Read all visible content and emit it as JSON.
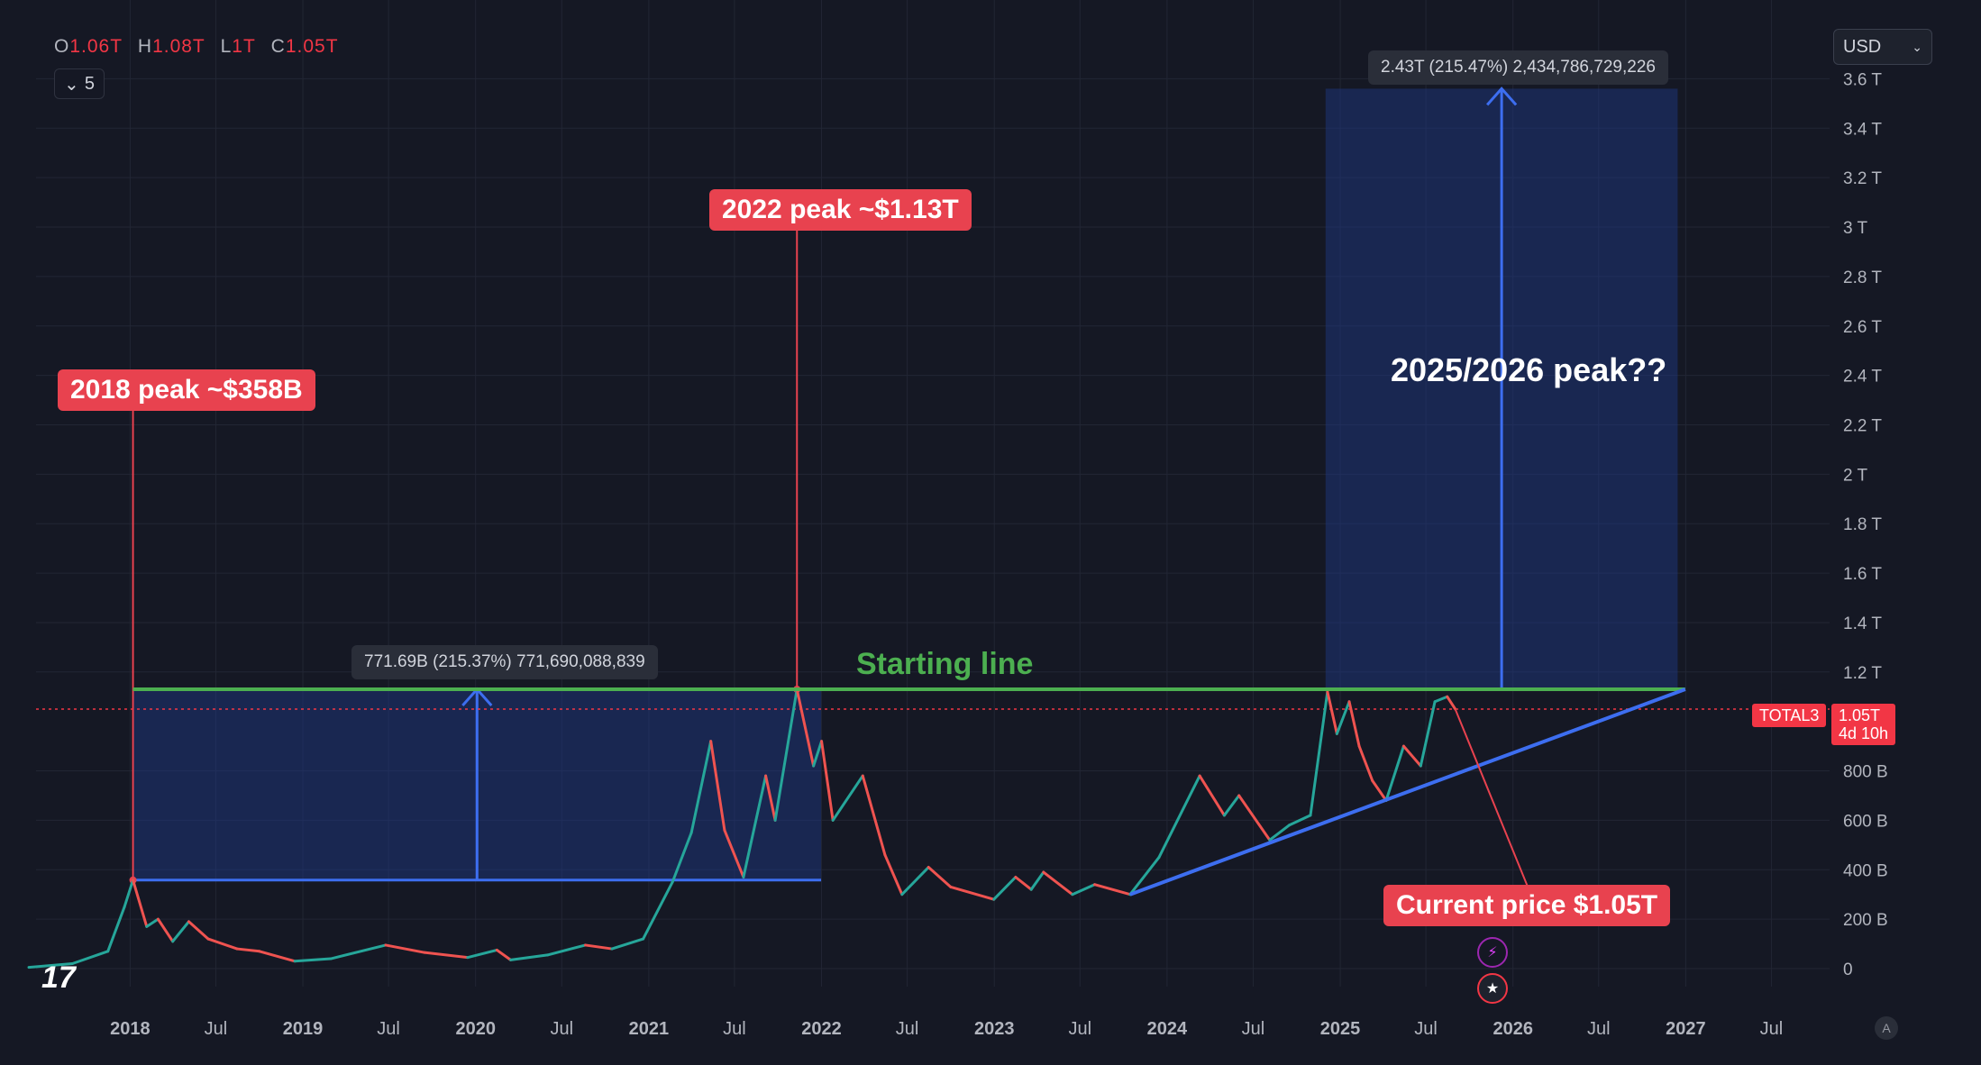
{
  "ohlc": {
    "o_key": "O",
    "o_val": "1.06T",
    "h_key": "H",
    "h_val": "1.08T",
    "l_key": "L",
    "l_val": "1T",
    "c_key": "C",
    "c_val": "1.05T"
  },
  "collapse_count": "5",
  "currency": "USD",
  "annotations": {
    "peak_2018": "2018 peak ~$358B",
    "peak_2022": "2022 peak ~$1.13T",
    "peak_2025": "2025/2026 peak??",
    "starting_line": "Starting line",
    "current_price": "Current price $1.05T",
    "measure_upper": "2.43T (215.47%) 2,434,786,729,226",
    "measure_lower": "771.69B (215.37%) 771,690,088,839"
  },
  "price_tag": {
    "symbol": "TOTAL3",
    "price": "1.05T",
    "countdown": "4d 10h"
  },
  "chart_data": {
    "type": "line",
    "title": "",
    "y_unit": "USD",
    "ylim": [
      0,
      3700000000000
    ],
    "y_ticks": [
      0,
      200000000000,
      400000000000,
      600000000000,
      800000000000,
      1200000000000,
      1400000000000,
      1600000000000,
      1800000000000,
      2000000000000,
      2200000000000,
      2400000000000,
      2600000000000,
      2800000000000,
      3000000000000,
      3200000000000,
      3400000000000,
      3600000000000
    ],
    "y_tick_labels": [
      "0",
      "200 B",
      "400 B",
      "600 B",
      "800 B",
      "1.2 T",
      "1.4 T",
      "1.6 T",
      "1.8 T",
      "2 T",
      "2.2 T",
      "2.4 T",
      "2.6 T",
      "2.8 T",
      "3 T",
      "3.2 T",
      "3.4 T",
      "3.6 T"
    ],
    "x_range": [
      "2017-04-01",
      "2027-11-01"
    ],
    "x_ticks": [
      {
        "date": "2018-01-01",
        "label": "2018",
        "major": true
      },
      {
        "date": "2018-07-01",
        "label": "Jul",
        "major": false
      },
      {
        "date": "2019-01-01",
        "label": "2019",
        "major": true
      },
      {
        "date": "2019-07-01",
        "label": "Jul",
        "major": false
      },
      {
        "date": "2020-01-01",
        "label": "2020",
        "major": true
      },
      {
        "date": "2020-07-01",
        "label": "Jul",
        "major": false
      },
      {
        "date": "2021-01-01",
        "label": "2021",
        "major": true
      },
      {
        "date": "2021-07-01",
        "label": "Jul",
        "major": false
      },
      {
        "date": "2022-01-01",
        "label": "2022",
        "major": true
      },
      {
        "date": "2022-07-01",
        "label": "Jul",
        "major": false
      },
      {
        "date": "2023-01-01",
        "label": "2023",
        "major": true
      },
      {
        "date": "2023-07-01",
        "label": "Jul",
        "major": false
      },
      {
        "date": "2024-01-01",
        "label": "2024",
        "major": true
      },
      {
        "date": "2024-07-01",
        "label": "Jul",
        "major": false
      },
      {
        "date": "2025-01-01",
        "label": "2025",
        "major": true
      },
      {
        "date": "2025-07-01",
        "label": "Jul",
        "major": false
      },
      {
        "date": "2026-01-01",
        "label": "2026",
        "major": true
      },
      {
        "date": "2026-07-01",
        "label": "Jul",
        "major": false
      },
      {
        "date": "2027-01-01",
        "label": "2027",
        "major": true
      },
      {
        "date": "2027-07-01",
        "label": "Jul",
        "major": false
      }
    ],
    "series": [
      {
        "values": [
          [
            "2017-06-01",
            5000000000
          ],
          [
            "2017-09-01",
            20000000000
          ],
          [
            "2017-11-15",
            70000000000
          ],
          [
            "2017-12-20",
            250000000000
          ],
          [
            "2018-01-07",
            358000000000
          ],
          [
            "2018-02-05",
            170000000000
          ],
          [
            "2018-03-01",
            200000000000
          ],
          [
            "2018-04-01",
            110000000000
          ],
          [
            "2018-05-05",
            190000000000
          ],
          [
            "2018-06-15",
            120000000000
          ],
          [
            "2018-08-15",
            80000000000
          ],
          [
            "2018-10-01",
            70000000000
          ],
          [
            "2018-12-15",
            30000000000
          ],
          [
            "2019-03-01",
            40000000000
          ],
          [
            "2019-06-25",
            95000000000
          ],
          [
            "2019-09-15",
            65000000000
          ],
          [
            "2019-12-15",
            45000000000
          ],
          [
            "2020-02-15",
            75000000000
          ],
          [
            "2020-03-15",
            35000000000
          ],
          [
            "2020-06-01",
            55000000000
          ],
          [
            "2020-08-20",
            95000000000
          ],
          [
            "2020-10-15",
            80000000000
          ],
          [
            "2020-12-20",
            120000000000
          ],
          [
            "2021-02-20",
            350000000000
          ],
          [
            "2021-04-01",
            550000000000
          ],
          [
            "2021-05-12",
            920000000000
          ],
          [
            "2021-06-10",
            560000000000
          ],
          [
            "2021-07-20",
            370000000000
          ],
          [
            "2021-09-05",
            780000000000
          ],
          [
            "2021-09-25",
            600000000000
          ],
          [
            "2021-11-10",
            1130000000000
          ],
          [
            "2021-12-15",
            820000000000
          ],
          [
            "2022-01-01",
            920000000000
          ],
          [
            "2022-01-25",
            600000000000
          ],
          [
            "2022-03-29",
            780000000000
          ],
          [
            "2022-05-15",
            460000000000
          ],
          [
            "2022-06-20",
            300000000000
          ],
          [
            "2022-08-15",
            410000000000
          ],
          [
            "2022-10-01",
            330000000000
          ],
          [
            "2022-12-31",
            280000000000
          ],
          [
            "2023-02-15",
            370000000000
          ],
          [
            "2023-03-20",
            320000000000
          ],
          [
            "2023-04-15",
            390000000000
          ],
          [
            "2023-06-15",
            300000000000
          ],
          [
            "2023-08-01",
            340000000000
          ],
          [
            "2023-10-15",
            300000000000
          ],
          [
            "2023-12-15",
            450000000000
          ],
          [
            "2024-03-10",
            780000000000
          ],
          [
            "2024-05-01",
            620000000000
          ],
          [
            "2024-06-01",
            700000000000
          ],
          [
            "2024-08-05",
            520000000000
          ],
          [
            "2024-09-15",
            580000000000
          ],
          [
            "2024-10-30",
            620000000000
          ],
          [
            "2024-12-05",
            1120000000000
          ],
          [
            "2024-12-25",
            950000000000
          ],
          [
            "2025-01-20",
            1080000000000
          ],
          [
            "2025-02-10",
            900000000000
          ],
          [
            "2025-03-10",
            760000000000
          ],
          [
            "2025-04-08",
            680000000000
          ],
          [
            "2025-05-15",
            900000000000
          ],
          [
            "2025-06-20",
            820000000000
          ],
          [
            "2025-07-20",
            1080000000000
          ],
          [
            "2025-08-15",
            1100000000000
          ],
          [
            "2025-09-01",
            1050000000000
          ]
        ]
      }
    ],
    "annotations": [
      {
        "type": "hline",
        "name": "starting-line",
        "start": "2018-01-07",
        "end": "2026-12-31",
        "value": 1130000000000,
        "color": "#4caf50"
      },
      {
        "type": "trendline",
        "start": [
          "2023-10-15",
          300000000000
        ],
        "end": [
          "2026-12-31",
          1130000000000
        ],
        "color": "#3d6ef0"
      },
      {
        "type": "range",
        "start": "2018-01-07",
        "end": "2021-12-31",
        "low": 358000000000,
        "high": 1130000000000,
        "color": "#3d6ef0"
      },
      {
        "type": "range",
        "start": "2024-12-01",
        "end": "2026-12-15",
        "low": 1130000000000,
        "high": 3560000000000,
        "color": "#3d6ef0"
      },
      {
        "type": "vline",
        "date": "2018-01-07",
        "from": 358000000000,
        "color": "#f23645"
      },
      {
        "type": "vline",
        "date": "2021-11-10",
        "from": 1130000000000,
        "color": "#f23645"
      }
    ],
    "current_price": 1050000000000,
    "grid": true,
    "colors": {
      "background": "#151824",
      "grid": "#222634",
      "up": "#26a69a",
      "down": "#ef5350",
      "axis_text": "#b2b5be",
      "label_red": "#e8424f",
      "green": "#4caf50",
      "blue": "#3d6ef0"
    }
  }
}
